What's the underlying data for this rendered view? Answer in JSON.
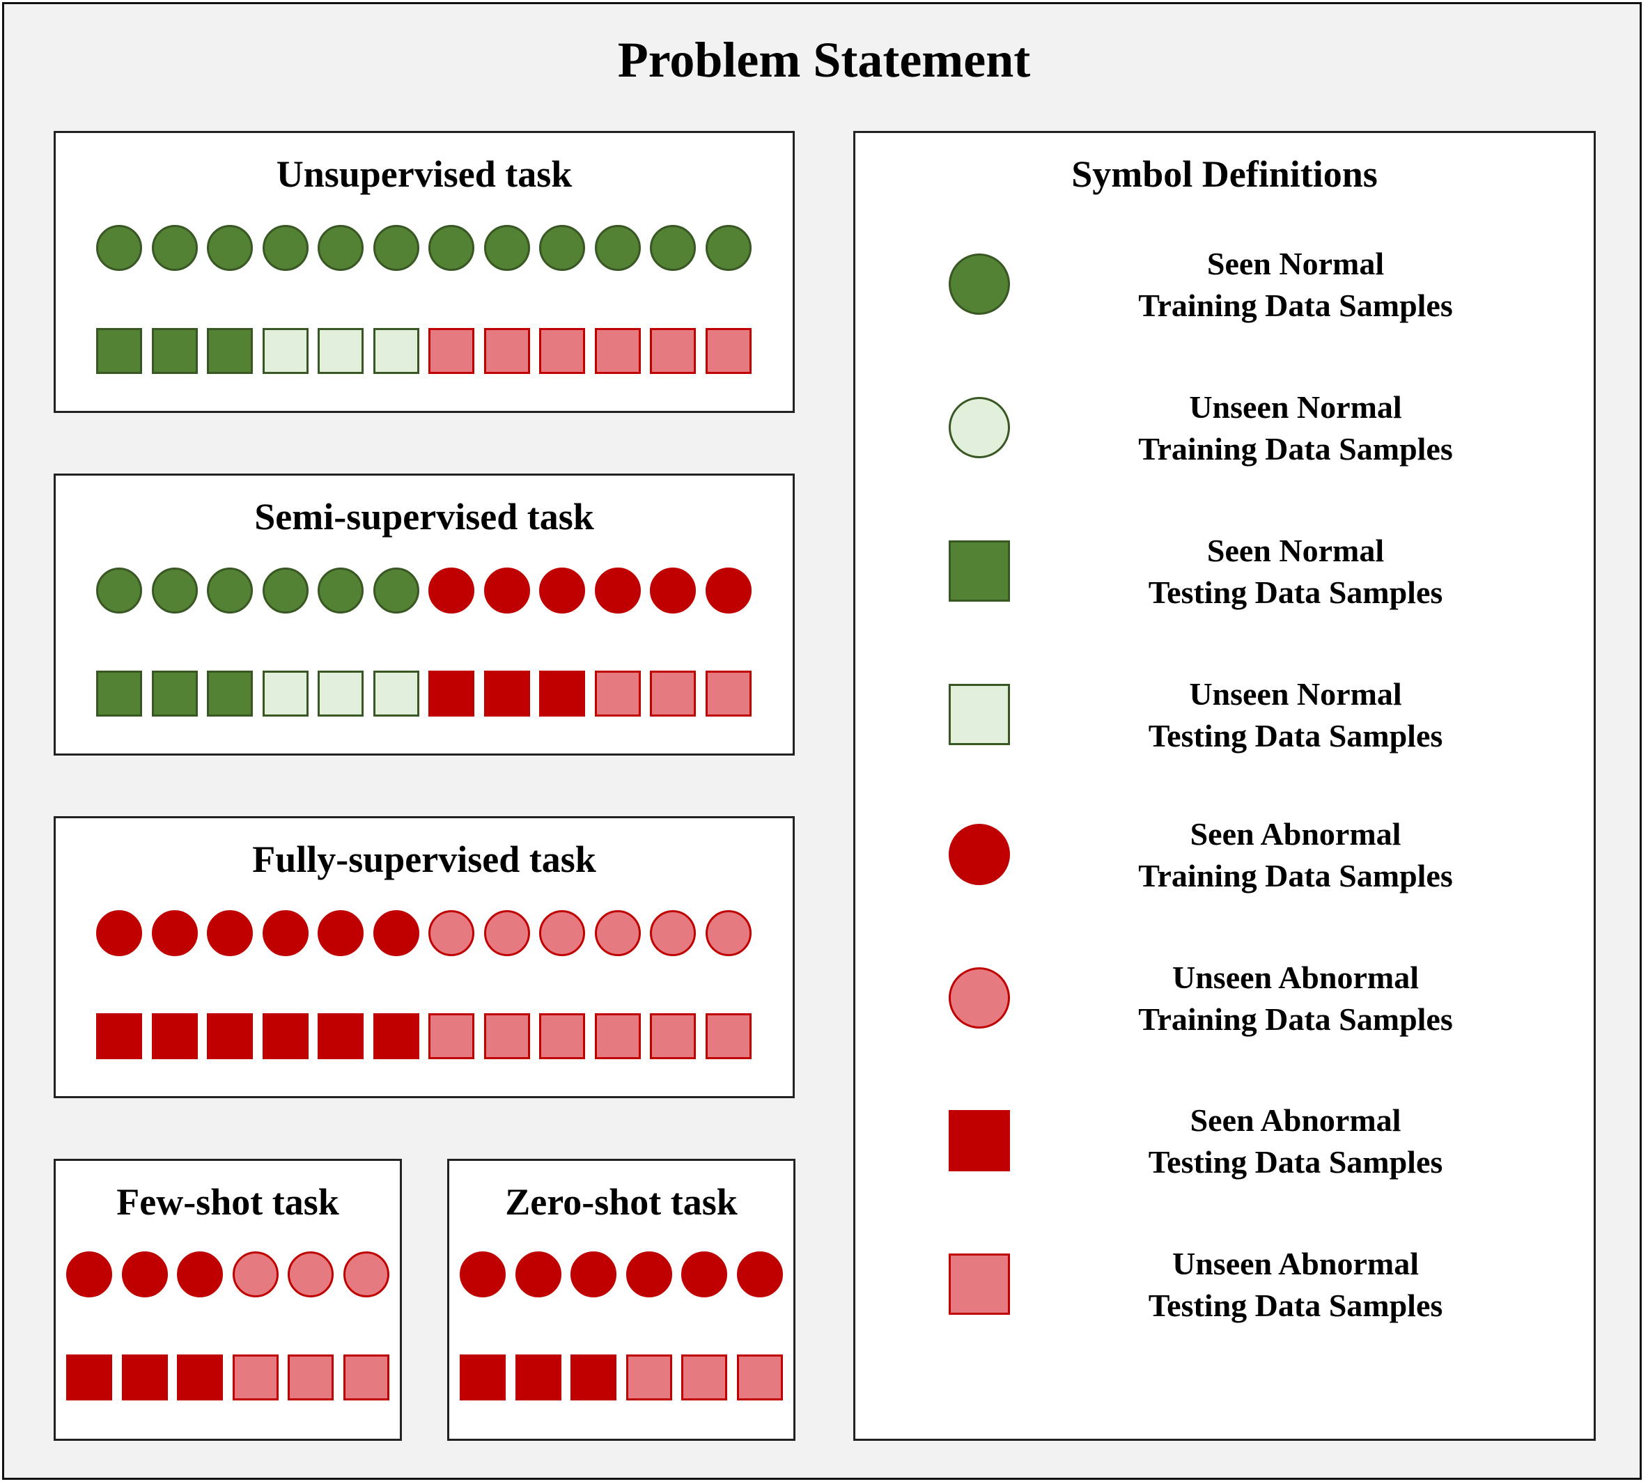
{
  "title": "Problem Statement",
  "colors": {
    "seen_normal_fill": "#548235",
    "unseen_normal_fill": "#e2efda",
    "normal_border": "#385723",
    "seen_abnormal_fill": "#c00000",
    "unseen_abnormal_fill": "#e57b80",
    "abnormal_border": "#c00000"
  },
  "symbols": {
    "SNTr": {
      "shape": "circle",
      "fill": "seen_normal_fill"
    },
    "UNTr": {
      "shape": "circle",
      "fill": "unseen_normal_fill"
    },
    "SNTe": {
      "shape": "square",
      "fill": "seen_normal_fill"
    },
    "UNTe": {
      "shape": "square",
      "fill": "unseen_normal_fill"
    },
    "SATr": {
      "shape": "circle",
      "fill": "seen_abnormal_fill"
    },
    "UATr": {
      "shape": "circle",
      "fill": "unseen_abnormal_fill"
    },
    "SATe": {
      "shape": "square",
      "fill": "seen_abnormal_fill"
    },
    "UATe": {
      "shape": "square",
      "fill": "unseen_abnormal_fill"
    }
  },
  "tasks": {
    "unsupervised": {
      "title": "Unsupervised task",
      "row1": [
        "SNTr",
        "SNTr",
        "SNTr",
        "SNTr",
        "SNTr",
        "SNTr",
        "SNTr",
        "SNTr",
        "SNTr",
        "SNTr",
        "SNTr",
        "SNTr"
      ],
      "row2": [
        "SNTe",
        "SNTe",
        "SNTe",
        "UNTe",
        "UNTe",
        "UNTe",
        "UATe",
        "UATe",
        "UATe",
        "UATe",
        "UATe",
        "UATe"
      ]
    },
    "semi": {
      "title": "Semi-supervised task",
      "row1": [
        "SNTr",
        "SNTr",
        "SNTr",
        "SNTr",
        "SNTr",
        "SNTr",
        "SATr",
        "SATr",
        "SATr",
        "SATr",
        "SATr",
        "SATr"
      ],
      "row2": [
        "SNTe",
        "SNTe",
        "SNTe",
        "UNTe",
        "UNTe",
        "UNTe",
        "SATe",
        "SATe",
        "SATe",
        "UATe",
        "UATe",
        "UATe"
      ]
    },
    "fully": {
      "title": "Fully-supervised task",
      "row1": [
        "SATr",
        "SATr",
        "SATr",
        "SATr",
        "SATr",
        "SATr",
        "UATr",
        "UATr",
        "UATr",
        "UATr",
        "UATr",
        "UATr"
      ],
      "row2": [
        "SATe",
        "SATe",
        "SATe",
        "SATe",
        "SATe",
        "SATe",
        "UATe",
        "UATe",
        "UATe",
        "UATe",
        "UATe",
        "UATe"
      ]
    },
    "few": {
      "title": "Few-shot task",
      "row1": [
        "SATr",
        "SATr",
        "SATr",
        "UATr",
        "UATr",
        "UATr"
      ],
      "row2": [
        "SATe",
        "SATe",
        "SATe",
        "UATe",
        "UATe",
        "UATe"
      ]
    },
    "zero": {
      "title": "Zero-shot task",
      "row1": [
        "SATr",
        "SATr",
        "SATr",
        "SATr",
        "SATr",
        "SATr"
      ],
      "row2": [
        "SATe",
        "SATe",
        "SATe",
        "UATe",
        "UATe",
        "UATe"
      ]
    }
  },
  "legend": {
    "title": "Symbol Definitions",
    "items": [
      {
        "symbol": "SNTr",
        "line1": "Seen Normal",
        "line2": "Training Data Samples"
      },
      {
        "symbol": "UNTr",
        "line1": "Unseen Normal",
        "line2": "Training Data Samples"
      },
      {
        "symbol": "SNTe",
        "line1": "Seen Normal",
        "line2": "Testing Data Samples"
      },
      {
        "symbol": "UNTe",
        "line1": "Unseen Normal",
        "line2": "Testing Data Samples"
      },
      {
        "symbol": "SATr",
        "line1": "Seen Abnormal",
        "line2": "Training Data Samples"
      },
      {
        "symbol": "UATr",
        "line1": "Unseen Abnormal",
        "line2": "Training Data Samples"
      },
      {
        "symbol": "SATe",
        "line1": "Seen Abnormal",
        "line2": "Testing Data Samples"
      },
      {
        "symbol": "UATe",
        "line1": "Unseen Abnormal",
        "line2": "Testing Data Samples"
      }
    ]
  }
}
